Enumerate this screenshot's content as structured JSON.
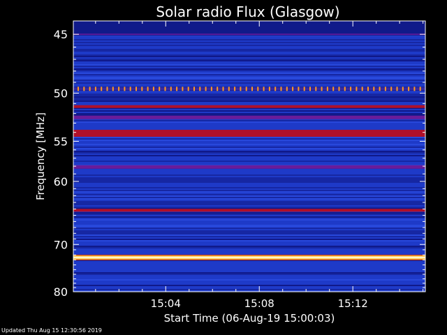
{
  "chart_data": {
    "type": "heatmap",
    "title": "Solar radio Flux (Glasgow)",
    "xlabel": "Start Time (06-Aug-19 15:00:03)",
    "ylabel": "Frequency [MHz]",
    "x_ticks": [
      "15:04",
      "15:08",
      "15:12"
    ],
    "x_tick_values_min": [
      4,
      8,
      12
    ],
    "xlim_min": [
      0.05,
      15.1
    ],
    "y_ticks": [
      45,
      50,
      55,
      60,
      70,
      80
    ],
    "ylim": [
      44,
      80
    ],
    "y_scale": "reciprocal",
    "background_color": "#1e3ac8",
    "bright_bands": [
      {
        "freq": 49.6,
        "level": "dotted-orange"
      },
      {
        "freq": 51.3,
        "level": "red"
      },
      {
        "freq": 52.4,
        "level": "purple"
      },
      {
        "freq": 54.1,
        "level": "red"
      },
      {
        "freq": 58.1,
        "level": "purple"
      },
      {
        "freq": 64.2,
        "level": "red"
      },
      {
        "freq": 72.5,
        "level": "white-hot"
      }
    ],
    "colors": {
      "low": "#0a0f7a",
      "mid": "#2040d0",
      "high": "#c0102a",
      "peak": "#ffffff"
    }
  },
  "footer": {
    "updated": "Updated Thu Aug 15 12:30:56 2019"
  }
}
